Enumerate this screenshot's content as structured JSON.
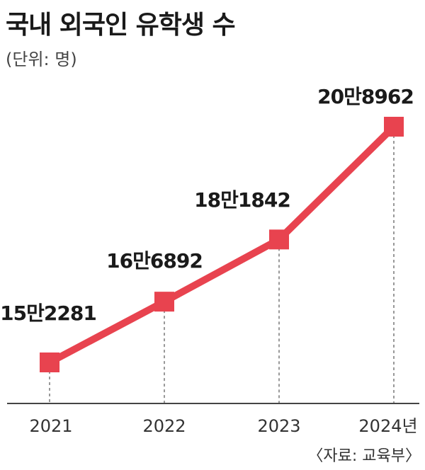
{
  "chart_data": {
    "type": "line",
    "title": "국내 외국인 유학생 수",
    "unit_label": "(단위: 명)",
    "categories": [
      "2021",
      "2022",
      "2023",
      "2024년"
    ],
    "values": [
      152281,
      166892,
      181842,
      208962
    ],
    "data_labels": [
      "15만2281",
      "16만6892",
      "18만1842",
      "20만8962"
    ],
    "source": "〈자료: 교육부〉",
    "color": "#e8434f",
    "grid": false,
    "legend": "none"
  }
}
